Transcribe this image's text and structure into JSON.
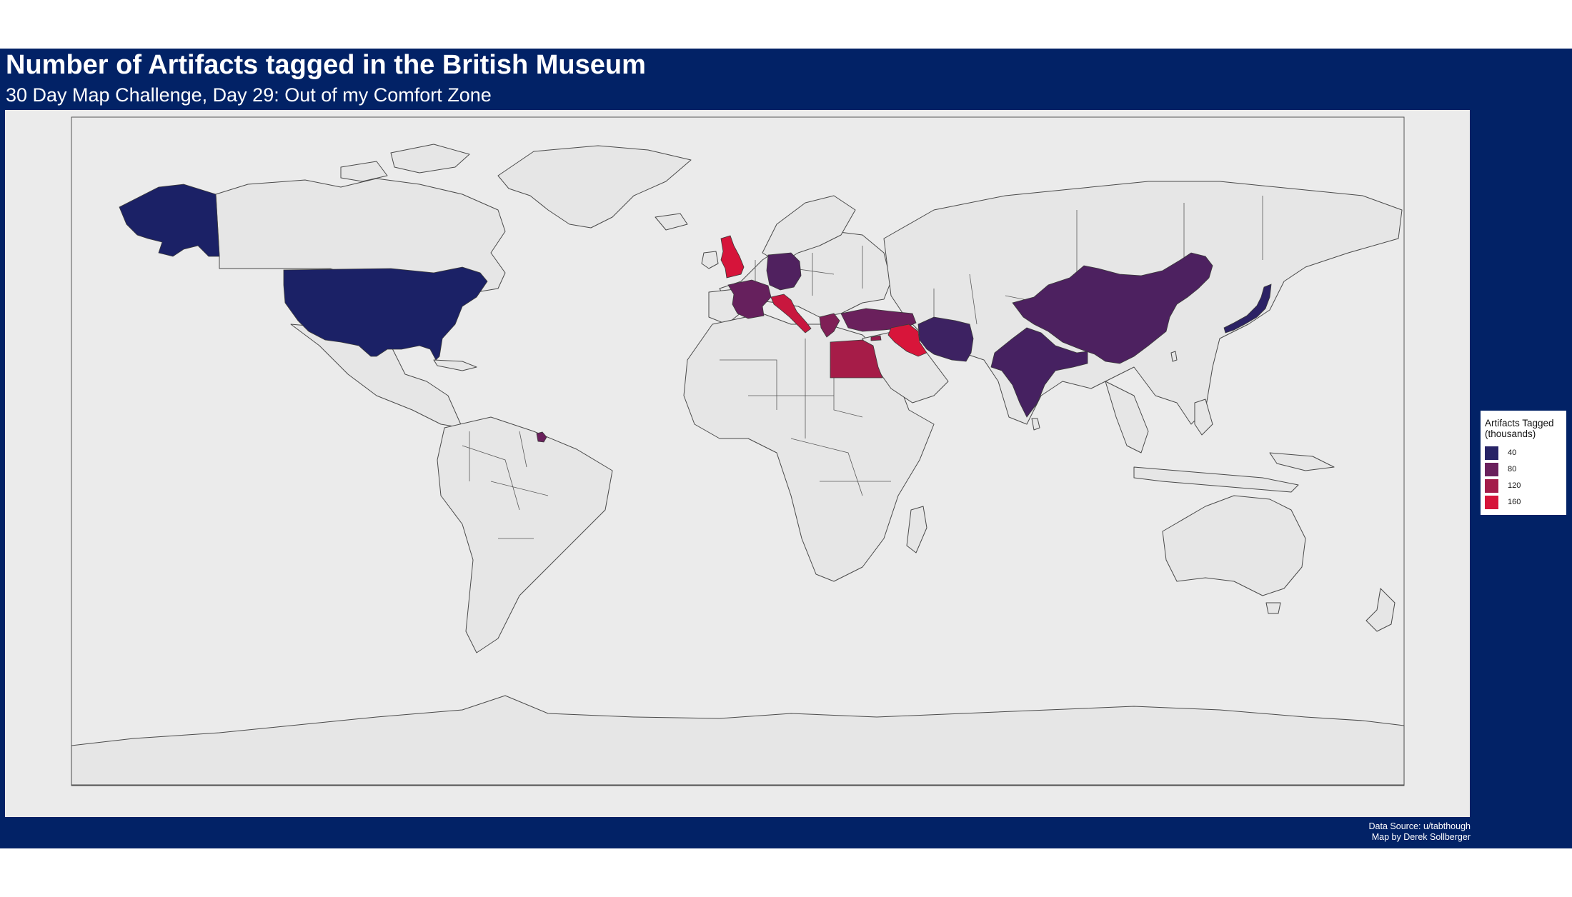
{
  "header": {
    "title": "Number of Artifacts tagged in the British Museum",
    "subtitle": "30 Day Map Challenge, Day 29: Out of my Comfort Zone"
  },
  "caption": {
    "line1": "Data Source: u/tabthough",
    "line2": "Map by Derek Sollberger"
  },
  "colors": {
    "background_panel": "#022266",
    "plot_background": "#ebebeb",
    "land": "#e6e6e6",
    "scale_low": "#1b2166",
    "scale_high": "#d6143a"
  },
  "legend": {
    "title_line1": "Artifacts Tagged",
    "title_line2": "(thousands)",
    "items": [
      {
        "label": "40",
        "color": "#272366"
      },
      {
        "label": "80",
        "color": "#6a205c"
      },
      {
        "label": "120",
        "color": "#a41c4a"
      },
      {
        "label": "160",
        "color": "#d6143a"
      }
    ]
  },
  "chart_data": {
    "type": "choropleth",
    "title": "Number of Artifacts tagged in the British Museum",
    "subtitle": "30 Day Map Challenge, Day 29: Out of my Comfort Zone",
    "legend_title": "Artifacts Tagged (thousands)",
    "legend_breaks": [
      40,
      80,
      120,
      160
    ],
    "legend_position": "right",
    "regions": [
      {
        "name": "United States",
        "value": 20,
        "color": "#1b2166"
      },
      {
        "name": "United Kingdom",
        "value": 170,
        "color": "#d6143a"
      },
      {
        "name": "Italy",
        "value": 150,
        "color": "#c8173e"
      },
      {
        "name": "Iraq",
        "value": 165,
        "color": "#d8153a"
      },
      {
        "name": "Egypt",
        "value": 125,
        "color": "#a61c48"
      },
      {
        "name": "Germany",
        "value": 60,
        "color": "#50215f"
      },
      {
        "name": "France",
        "value": 75,
        "color": "#66205d"
      },
      {
        "name": "Greece",
        "value": 95,
        "color": "#7f1f56"
      },
      {
        "name": "Turkey",
        "value": 80,
        "color": "#6a205c"
      },
      {
        "name": "Cyprus",
        "value": 110,
        "color": "#961d4e"
      },
      {
        "name": "Iran",
        "value": 45,
        "color": "#3d2262"
      },
      {
        "name": "China",
        "value": 55,
        "color": "#4d2160"
      },
      {
        "name": "India",
        "value": 50,
        "color": "#462161"
      },
      {
        "name": "Japan",
        "value": 30,
        "color": "#2c2265"
      },
      {
        "name": "French Guiana",
        "value": 80,
        "color": "#6a205c"
      }
    ]
  }
}
